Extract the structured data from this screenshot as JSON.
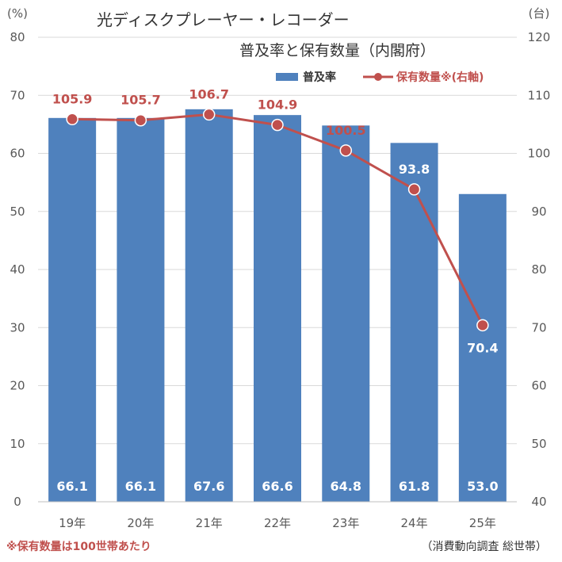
{
  "chart_data": {
    "type": "bar",
    "title": "光ディスクプレーヤー・レコーダー",
    "subtitle": "普及率と保有数量（内閣府）",
    "categories": [
      "19年",
      "20年",
      "21年",
      "22年",
      "23年",
      "24年",
      "25年"
    ],
    "series": [
      {
        "name": "普及率",
        "type": "bar",
        "axis": "left",
        "values": [
          66.1,
          66.1,
          67.6,
          66.6,
          64.8,
          61.8,
          53.0
        ],
        "value_labels": [
          "66.1",
          "66.1",
          "67.6",
          "66.6",
          "64.8",
          "61.8",
          "53.0"
        ]
      },
      {
        "name": "保有数量※(右軸)",
        "type": "line",
        "axis": "right",
        "values": [
          105.9,
          105.7,
          106.7,
          104.9,
          100.5,
          93.8,
          70.4
        ],
        "value_labels": [
          "105.9",
          "105.7",
          "106.7",
          "104.9",
          "100.5",
          "93.8",
          "70.4"
        ]
      }
    ],
    "y_left": {
      "unit": "(%)",
      "min": 0,
      "max": 80,
      "step": 10,
      "ticks": [
        "0",
        "10",
        "20",
        "30",
        "40",
        "50",
        "60",
        "70",
        "80"
      ]
    },
    "y_right": {
      "unit": "(台)",
      "min": 40,
      "max": 120,
      "step": 10,
      "ticks": [
        "40",
        "50",
        "60",
        "70",
        "80",
        "90",
        "100",
        "110",
        "120"
      ]
    },
    "grid": true,
    "legend_position": "top-right",
    "colors": {
      "bar": "#4f81bd",
      "line": "#c0504d",
      "grid": "#d9d9d9"
    },
    "footnote": "※保有数量は100世帯あたり",
    "source": "（消費動向調査 総世帯）"
  }
}
